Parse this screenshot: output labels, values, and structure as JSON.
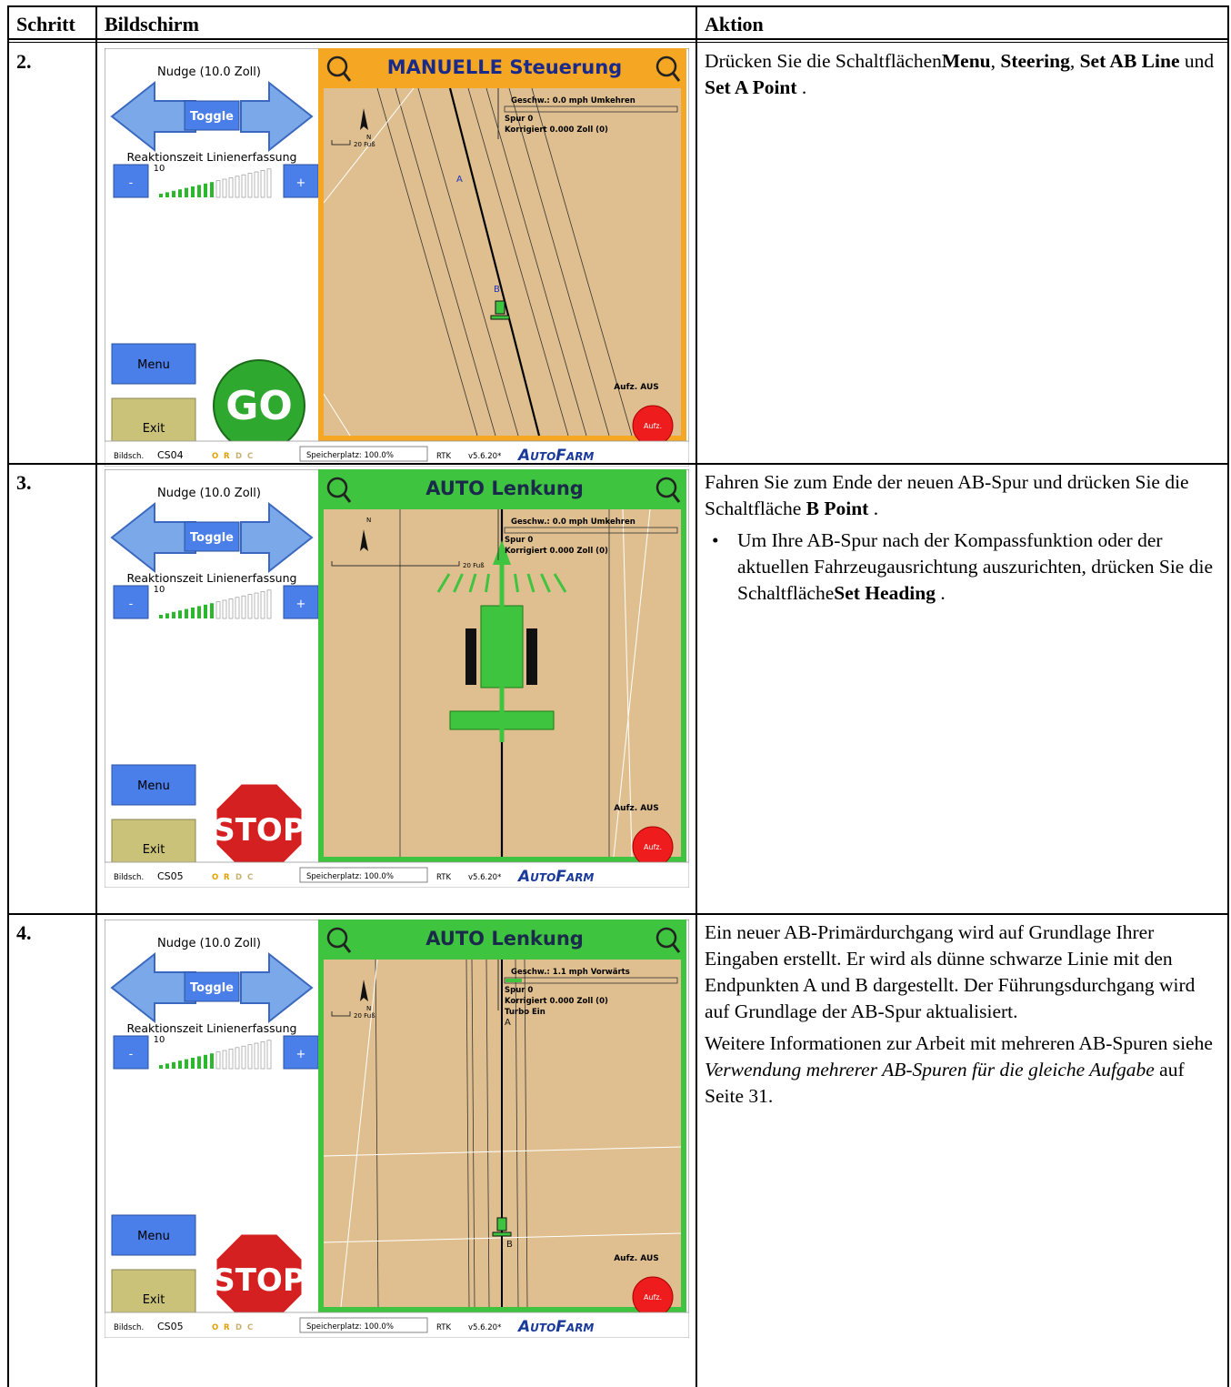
{
  "table": {
    "headers": [
      "Schritt",
      "Bildschirm",
      "Aktion"
    ],
    "rows": [
      {
        "step": "2.",
        "screen": {
          "nudge": "Nudge (10.0 Zoll)",
          "toggle": "Toggle",
          "reaction": "Reaktionszeit Linienerfassung",
          "level": "10",
          "minus": "-",
          "plus": "+",
          "menu": "Menu",
          "exit": "Exit",
          "action_button": "GO",
          "mode": "MANUELLE Steuerung",
          "mode_color": "#f5a623",
          "north": "N",
          "scale": "20 Fuß",
          "info": [
            "Geschw.: 0.0 mph Umkehren",
            "Spur 0",
            "Korrigiert 0.000 Zoll (0)"
          ],
          "points": [
            "A",
            "B"
          ],
          "record": "Aufz. AUS",
          "record_button": "Aufz.",
          "status": {
            "screen_label": "Bildsch.",
            "screen_id": "CS04",
            "flags": [
              {
                "text": "O",
                "color": "#e0a000"
              },
              {
                "text": "R",
                "color": "#e0a000"
              },
              {
                "text": "D",
                "color": "#c8b070"
              },
              {
                "text": "C",
                "color": "#c8b070"
              }
            ],
            "memory": "Speicherplatz: 100.0%",
            "fix": "RTK",
            "version": "v5.6.20*",
            "brand": "AutoFarm"
          }
        },
        "action": [
          {
            "runs": [
              {
                "text": "Drücken Sie die Schaltflächen"
              },
              {
                "text": "Menu",
                "style": "bold"
              },
              {
                "text": ", "
              },
              {
                "text": "Steering",
                "style": "bold"
              },
              {
                "text": ", "
              },
              {
                "text": "Set AB Line",
                "style": "bold"
              },
              {
                "text": " und "
              },
              {
                "text": "Set A Point",
                "style": "bold"
              },
              {
                "text": " ."
              }
            ]
          }
        ]
      },
      {
        "step": "3.",
        "screen": {
          "nudge": "Nudge (10.0 Zoll)",
          "toggle": "Toggle",
          "reaction": "Reaktionszeit Linienerfassung",
          "level": "10",
          "minus": "-",
          "plus": "+",
          "menu": "Menu",
          "exit": "Exit",
          "action_button": "STOP",
          "mode": "AUTO Lenkung",
          "mode_color": "#3ec43e",
          "north": "N",
          "scale": "20 Fuß",
          "info": [
            "Geschw.: 0.0 mph Umkehren",
            "Spur 0",
            "Korrigiert 0.000 Zoll (0)"
          ],
          "points": [],
          "record": "Aufz. AUS",
          "record_button": "Aufz.",
          "status": {
            "screen_label": "Bildsch.",
            "screen_id": "CS05",
            "flags": [
              {
                "text": "O",
                "color": "#e0a000"
              },
              {
                "text": "R",
                "color": "#e0a000"
              },
              {
                "text": "D",
                "color": "#c8b070"
              },
              {
                "text": "C",
                "color": "#c8b070"
              }
            ],
            "memory": "Speicherplatz: 100.0%",
            "fix": "RTK",
            "version": "v5.6.20*",
            "brand": "AutoFarm"
          }
        },
        "action": [
          {
            "runs": [
              {
                "text": "Fahren Sie zum Ende der neuen AB-Spur und drücken Sie die Schaltfläche "
              },
              {
                "text": "B Point",
                "style": "bold"
              },
              {
                "text": " ."
              }
            ]
          },
          {
            "bullet": true,
            "runs": [
              {
                "text": "Um Ihre AB-Spur nach der Kompassfunktion oder der aktuellen Fahrzeugausrichtung auszurichten, drücken Sie die Schaltfläche"
              },
              {
                "text": "Set Heading",
                "style": "bold"
              },
              {
                "text": " ."
              }
            ]
          }
        ]
      },
      {
        "step": "4.",
        "screen": {
          "nudge": "Nudge (10.0 Zoll)",
          "toggle": "Toggle",
          "reaction": "Reaktionszeit Linienerfassung",
          "level": "10",
          "minus": "-",
          "plus": "+",
          "menu": "Menu",
          "exit": "Exit",
          "action_button": "STOP",
          "mode": "AUTO Lenkung",
          "mode_color": "#3ec43e",
          "north": "N",
          "scale": "20 Fuß",
          "info": [
            "Geschw.: 1.1 mph Vorwärts",
            "Spur 0",
            "Korrigiert 0.000 Zoll (0)",
            "Turbo Ein"
          ],
          "points": [
            "A",
            "B"
          ],
          "record": "Aufz. AUS",
          "record_button": "Aufz.",
          "status": {
            "screen_label": "Bildsch.",
            "screen_id": "CS05",
            "flags": [
              {
                "text": "O",
                "color": "#e0a000"
              },
              {
                "text": "R",
                "color": "#e0a000"
              },
              {
                "text": "D",
                "color": "#c8b070"
              },
              {
                "text": "C",
                "color": "#c8b070"
              }
            ],
            "memory": "Speicherplatz: 100.0%",
            "fix": "RTK",
            "version": "v5.6.20*",
            "brand": "AutoFarm"
          }
        },
        "action": [
          {
            "runs": [
              {
                "text": "Ein neuer AB-Primärdurchgang wird auf Grundlage Ihrer Eingaben erstellt. Er wird als dünne schwarze Linie mit den Endpunkten A und B dargestellt. Der Führungsdurchgang wird auf Grundlage der AB-Spur aktualisiert."
              }
            ]
          },
          {
            "runs": [
              {
                "text": "Weitere Informationen zur Arbeit mit mehreren AB-Spuren siehe "
              },
              {
                "text": "Verwendung mehrerer AB-Spuren für die gleiche Aufgabe",
                "style": "italic"
              },
              {
                "text": " auf Seite 31."
              }
            ]
          }
        ]
      }
    ]
  }
}
